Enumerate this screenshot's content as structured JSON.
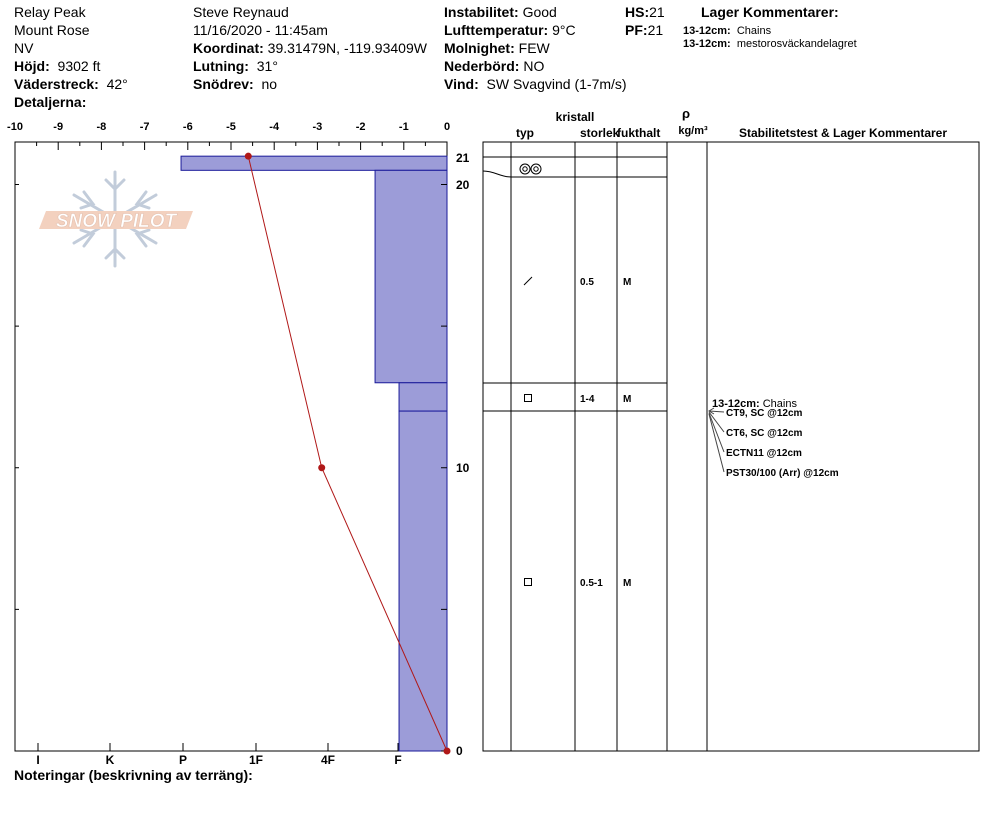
{
  "header": {
    "site": "Relay Peak",
    "range": "Mount Rose",
    "state": "NV",
    "elevation_label": "Höjd:",
    "elevation_value": "9302 ft",
    "aspect_label": "Väderstreck:",
    "aspect_value": "42°",
    "details_label": "Detaljerna:",
    "observer": "Steve Reynaud",
    "datetime": "11/16/2020 - 11:45am",
    "coord_label": "Koordinat:",
    "coord_value": "39.31479N, -119.93409W",
    "slope_label": "Lutning:",
    "slope_value": "31°",
    "drift_label": "Snödrev:",
    "drift_value": "no",
    "instability_label": "Instabilitet:",
    "instability_value": "Good",
    "airtemp_label": "Lufttemperatur:",
    "airtemp_value": "9°C",
    "sky_label": "Molnighet:",
    "sky_value": "FEW",
    "precip_label": "Nederbörd:",
    "precip_value": "NO",
    "wind_label": "Vind:",
    "wind_value": "SW Svagvind (1-7m/s)",
    "hs_label": "HS:",
    "hs_value": "21",
    "pf_label": "PF:",
    "pf_value": "21",
    "layer_comments_title": "Lager Kommentarer:",
    "layer_comments": [
      {
        "depth": "13-12cm:",
        "text": "Chains"
      },
      {
        "depth": "13-12cm:",
        "text": "mestorosväckandelagret"
      }
    ]
  },
  "logo": {
    "text": "SNOW PILOT"
  },
  "footer": {
    "notes_label": "Noteringar (beskrivning av terräng):"
  },
  "table": {
    "kristall": "kristall",
    "typ": "typ",
    "storlek": "storlek",
    "fukthalt": "fukthalt",
    "rho": "ρ",
    "rho_unit": "kg/m³",
    "comments": "Stabilitetstest & Lager Kommentarer",
    "rows": [
      {
        "size": "0.5",
        "moisture": "M",
        "icon": "decomposing-fragments-icon"
      },
      {
        "size": "1-4",
        "moisture": "M",
        "icon": "faceted-crystals-icon"
      },
      {
        "size": "0.5-1",
        "moisture": "M",
        "icon": "faceted-crystals-icon"
      }
    ],
    "top_icon": "melt-forms-icon",
    "stability_title_depth": "13-12cm:",
    "stability_title_text": "Chains",
    "stability_tests": [
      "CT9, SC @12cm",
      "CT6, SC @12cm",
      "ECTN11 @12cm",
      "PST30/100 (Arr) @12cm"
    ]
  },
  "chart_data": {
    "type": "area",
    "temp_axis": {
      "ticks": [
        "-10",
        "-9",
        "-8",
        "-7",
        "-6",
        "-5",
        "-4",
        "-3",
        "-2",
        "-1",
        "0"
      ],
      "range": [
        -10,
        0
      ]
    },
    "hardness_axis": {
      "ticks": [
        "I",
        "K",
        "P",
        "1F",
        "4F",
        "F"
      ]
    },
    "depth_axis": {
      "range": [
        0,
        21.5
      ],
      "labels": [
        "21",
        "20",
        "10",
        "0"
      ]
    },
    "layers": [
      {
        "top": 21,
        "bottom": 20.5,
        "hardness_index": 6.1
      },
      {
        "top": 20.5,
        "bottom": 13,
        "hardness_index": 1.65
      },
      {
        "top": 13,
        "bottom": 12,
        "hardness_index": 1.1
      },
      {
        "top": 12,
        "bottom": 0,
        "hardness_index": 1.1
      }
    ],
    "temperature_profile": [
      {
        "depth": 21,
        "temp": -4.6
      },
      {
        "depth": 10,
        "temp": -2.9
      },
      {
        "depth": 0,
        "temp": 0
      }
    ],
    "colors": {
      "layer_fill": "#9c9cd8",
      "layer_edge": "#1a1a9a",
      "temp_line": "#b01818"
    }
  }
}
